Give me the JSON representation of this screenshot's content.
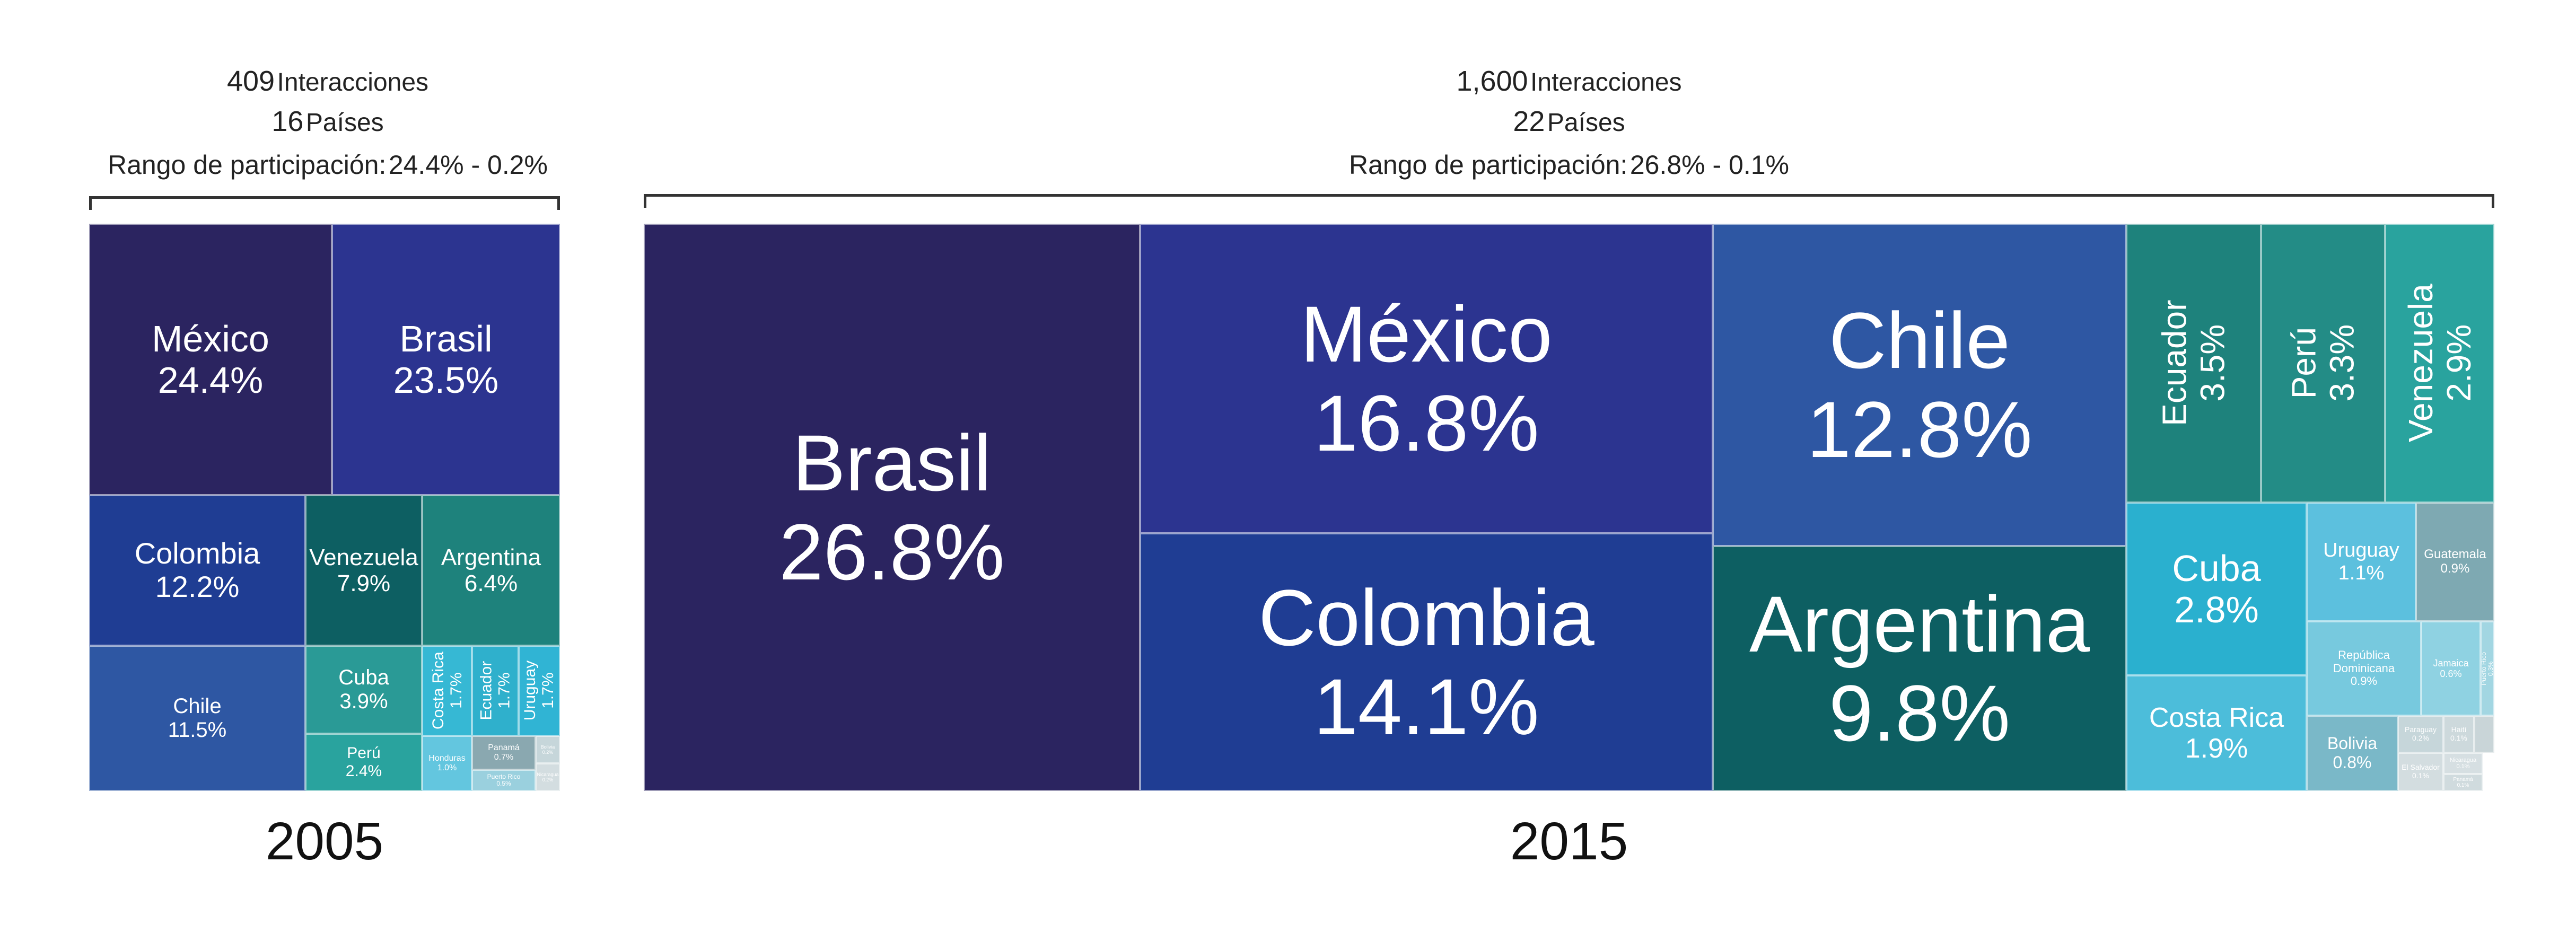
{
  "chart_data": [
    {
      "type": "treemap",
      "year": "2005",
      "summary": {
        "interactions_value": "409",
        "interactions_label": "Interacciones",
        "countries_value": "16",
        "countries_label": "Países",
        "range_label": "Rango de participación:",
        "range_value": "24.4% - 0.2%"
      },
      "items": [
        {
          "name": "México",
          "value": "24.4%",
          "color": "#2b2460"
        },
        {
          "name": "Brasil",
          "value": "23.5%",
          "color": "#2c3490"
        },
        {
          "name": "Colombia",
          "value": "12.2%",
          "color": "#1f3d93"
        },
        {
          "name": "Venezuela",
          "value": "7.9%",
          "color": "#0d5f62"
        },
        {
          "name": "Argentina",
          "value": "6.4%",
          "color": "#1e827c"
        },
        {
          "name": "Chile",
          "value": "11.5%",
          "color": "#2e57a3"
        },
        {
          "name": "Cuba",
          "value": "3.9%",
          "color": "#2a9a96"
        },
        {
          "name": "Costa Rica",
          "value": "1.7%",
          "color": "#36b8d4"
        },
        {
          "name": "Ecuador",
          "value": "1.7%",
          "color": "#2fb0cc"
        },
        {
          "name": "Uruguay",
          "value": "1.7%",
          "color": "#30b4d4"
        },
        {
          "name": "Perú",
          "value": "2.4%",
          "color": "#29a39e"
        },
        {
          "name": "Honduras",
          "value": "1.0%",
          "color": "#63c6df"
        },
        {
          "name": "Panamá",
          "value": "0.7%",
          "color": "#8aa8b0"
        },
        {
          "name": "Puerto Rico",
          "value": "0.5%",
          "color": "#9ad0de"
        },
        {
          "name": "Bolivia",
          "value": "0.2%",
          "color": "#c6d6da"
        },
        {
          "name": "Nicaragua",
          "value": "0.2%",
          "color": "#d3dde0"
        }
      ]
    },
    {
      "type": "treemap",
      "year": "2015",
      "summary": {
        "interactions_value": "1,600",
        "interactions_label": "Interacciones",
        "countries_value": "22",
        "countries_label": "Países",
        "range_label": "Rango de participación:",
        "range_value": "26.8% - 0.1%"
      },
      "items": [
        {
          "name": "Brasil",
          "value": "26.8%",
          "color": "#2b2460"
        },
        {
          "name": "México",
          "value": "16.8%",
          "color": "#2c3490"
        },
        {
          "name": "Colombia",
          "value": "14.1%",
          "color": "#1f3d93"
        },
        {
          "name": "Chile",
          "value": "12.8%",
          "color": "#2e57a3"
        },
        {
          "name": "Argentina",
          "value": "9.8%",
          "color": "#0d5f62"
        },
        {
          "name": "Ecuador",
          "value": "3.5%",
          "color": "#1e827c"
        },
        {
          "name": "Perú",
          "value": "3.3%",
          "color": "#238c86"
        },
        {
          "name": "Venezuela",
          "value": "2.9%",
          "color": "#29a39e"
        },
        {
          "name": "Cuba",
          "value": "2.8%",
          "color": "#2ab0cf"
        },
        {
          "name": "Costa Rica",
          "value": "1.9%",
          "color": "#4cbdda"
        },
        {
          "name": "Uruguay",
          "value": "1.1%",
          "color": "#5cc0de"
        },
        {
          "name": "Guatemala",
          "value": "0.9%",
          "color": "#7ea9b2"
        },
        {
          "name": "República Dominicana",
          "value": "0.9%",
          "color": "#77c9de"
        },
        {
          "name": "Jamaica",
          "value": "0.6%",
          "color": "#8fd2e2"
        },
        {
          "name": "Puerto Rico",
          "value": "0.3%",
          "color": "#a2d6e2"
        },
        {
          "name": "Bolivia",
          "value": "0.8%",
          "color": "#7ab8c8"
        },
        {
          "name": "Paraguay",
          "value": "0.2%",
          "color": "#c6d6da"
        },
        {
          "name": "Haití",
          "value": "0.1%",
          "color": "#cdd9dc"
        },
        {
          "name": "El Salvador",
          "value": "0.1%",
          "color": "#d3dde0"
        },
        {
          "name": "Nicaragua",
          "value": "0.1%",
          "color": "#d6dfe2"
        },
        {
          "name": "Panamá",
          "value": "0.1%",
          "color": "#d0dbde"
        },
        {
          "name": "",
          "value": "",
          "color": "#c9d5d8"
        }
      ]
    }
  ]
}
